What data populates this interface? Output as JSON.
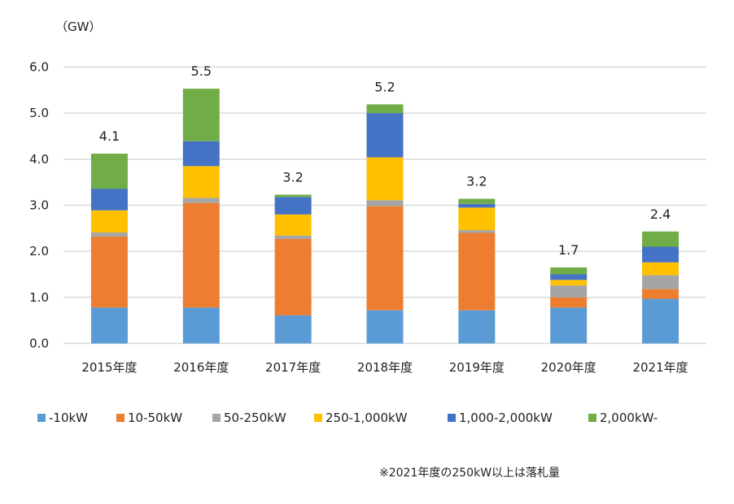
{
  "chart_data": {
    "type": "bar",
    "stacked": true,
    "unit_label": "（GW）",
    "categories": [
      "2015年度",
      "2016年度",
      "2017年度",
      "2018年度",
      "2019年度",
      "2020年度",
      "2021年度"
    ],
    "series": [
      {
        "name": "-10kW",
        "color": "#5B9BD5",
        "values": [
          0.78,
          0.78,
          0.61,
          0.72,
          0.72,
          0.78,
          0.97
        ]
      },
      {
        "name": "10-50kW",
        "color": "#ED7D31",
        "values": [
          1.54,
          2.27,
          1.66,
          2.26,
          1.68,
          0.22,
          0.21
        ]
      },
      {
        "name": "50-250kW",
        "color": "#A5A5A5",
        "values": [
          0.09,
          0.11,
          0.07,
          0.13,
          0.06,
          0.26,
          0.3
        ]
      },
      {
        "name": "250-1,000kW",
        "color": "#FFC000",
        "values": [
          0.48,
          0.69,
          0.46,
          0.93,
          0.49,
          0.12,
          0.28
        ]
      },
      {
        "name": "1,000-2,000kW",
        "color": "#4472C4",
        "values": [
          0.47,
          0.54,
          0.38,
          0.96,
          0.08,
          0.12,
          0.34
        ]
      },
      {
        "name": "2,000kW-",
        "color": "#70AD47",
        "values": [
          0.76,
          1.14,
          0.05,
          0.19,
          0.11,
          0.15,
          0.33
        ]
      }
    ],
    "totals": [
      "4.1",
      "5.5",
      "3.2",
      "5.2",
      "3.2",
      "1.7",
      "2.4"
    ],
    "y_ticks": [
      "0.0",
      "1.0",
      "2.0",
      "3.0",
      "4.0",
      "5.0",
      "6.0"
    ],
    "ylim": [
      0,
      6
    ],
    "grid": true,
    "legend_position": "bottom"
  },
  "note": "※2021年度の250kW以上は落札量"
}
